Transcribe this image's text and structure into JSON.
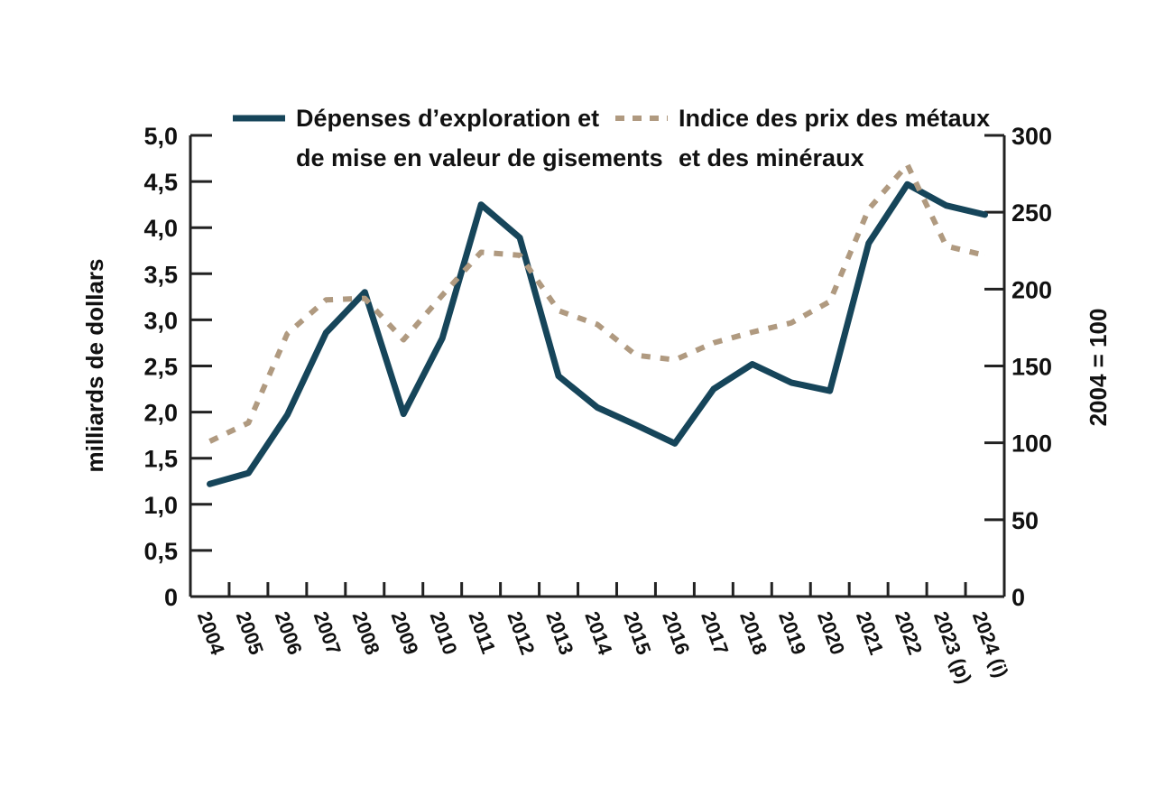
{
  "chart_data": {
    "type": "line",
    "title": "",
    "categories": [
      "2004",
      "2005",
      "2006",
      "2007",
      "2008",
      "2009",
      "2010",
      "2011",
      "2012",
      "2013",
      "2014",
      "2015",
      "2016",
      "2017",
      "2018",
      "2019",
      "2020",
      "2021",
      "2022",
      "2023 (p)",
      "2024 (i)"
    ],
    "y_left": {
      "label": "milliards de dollars",
      "range": [
        0,
        5
      ],
      "ticks": [
        0,
        0.5,
        1.0,
        1.5,
        2.0,
        2.5,
        3.0,
        3.5,
        4.0,
        4.5,
        5.0
      ],
      "tick_labels": [
        "0",
        "0,5",
        "1,0",
        "1,5",
        "2,0",
        "2,5",
        "3,0",
        "3,5",
        "4,0",
        "4,5",
        "5,0"
      ]
    },
    "y_right": {
      "label": "2004 = 100",
      "range": [
        0,
        300
      ],
      "ticks": [
        0,
        50,
        100,
        150,
        200,
        250,
        300
      ],
      "tick_labels": [
        "0",
        "50",
        "100",
        "150",
        "200",
        "250",
        "300"
      ]
    },
    "series": [
      {
        "name_lines": [
          "Dépenses d’exploration et",
          "de mise en valeur de gisements"
        ],
        "axis": "left",
        "style": "solid",
        "color": "#16455a",
        "values": [
          1.22,
          1.34,
          1.97,
          2.86,
          3.3,
          1.98,
          2.8,
          4.25,
          3.89,
          2.39,
          2.05,
          1.86,
          1.66,
          2.25,
          2.52,
          2.32,
          2.23,
          3.83,
          4.47,
          4.24,
          4.14
        ]
      },
      {
        "name_lines": [
          "Indice des prix des métaux",
          "et des minéraux"
        ],
        "axis": "right",
        "style": "dashed",
        "color": "#b09a80",
        "values": [
          101,
          113,
          171,
          193,
          194,
          167,
          196,
          224,
          222,
          186,
          177,
          157,
          154,
          165,
          172,
          178,
          192,
          252,
          281,
          228,
          222
        ]
      }
    ],
    "legend": {
      "position": "top"
    },
    "grid": false
  }
}
